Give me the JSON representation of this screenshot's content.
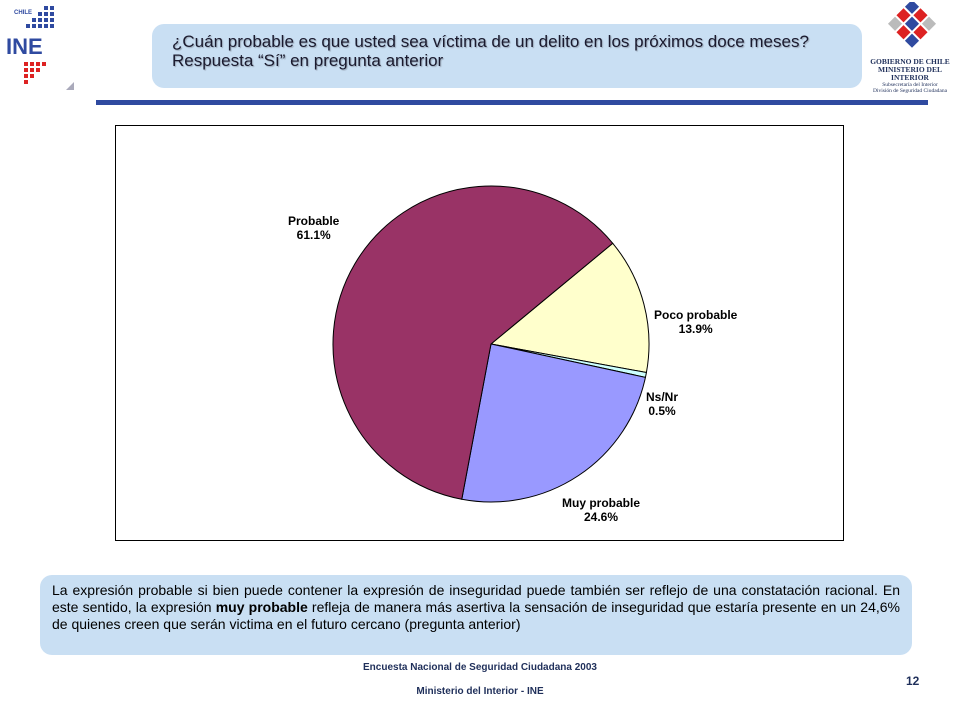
{
  "header": {
    "title_line1": "¿Cuán probable es que usted sea víctima de un delito en los próximos doce meses?",
    "title_line2": "Respuesta “Sí” en pregunta anterior",
    "left_logo_text": "INE",
    "left_logo_small": "CHILE",
    "gov_line1": "GOBIERNO DE CHILE",
    "gov_line2": "MINISTERIO DEL INTERIOR",
    "gov_line3": "Subsecretaría del Interior",
    "gov_line4": "División de Seguridad Ciudadana"
  },
  "chart_data": {
    "type": "pie",
    "slices": [
      {
        "label": "Probable",
        "value_text": "61.1%",
        "value": 61.1,
        "color": "#993366"
      },
      {
        "label": "Poco probable",
        "value_text": "13.9%",
        "value": 13.9,
        "color": "#ffffcc"
      },
      {
        "label": "Ns/Nr",
        "value_text": "0.5%",
        "value": 0.5,
        "color": "#ccffff"
      },
      {
        "label": "Muy probable",
        "value_text": "24.6%",
        "value": 24.6,
        "color": "#9999ff"
      }
    ]
  },
  "note": {
    "part1": "La expresión probable si bien puede contener la expresión de inseguridad puede también ser reflejo de una constatación racional. En este sentido, la expresión ",
    "bold": "muy probable",
    "part2": " refleja de manera más asertiva la sensación de inseguridad que estaría presente en un 24,6% de quienes creen que serán victima en el futuro cercano (pregunta anterior)"
  },
  "footer": {
    "line1": "Encuesta Nacional de Seguridad Ciudadana 2003",
    "line2": "Ministerio del Interior - INE",
    "page": "12"
  }
}
